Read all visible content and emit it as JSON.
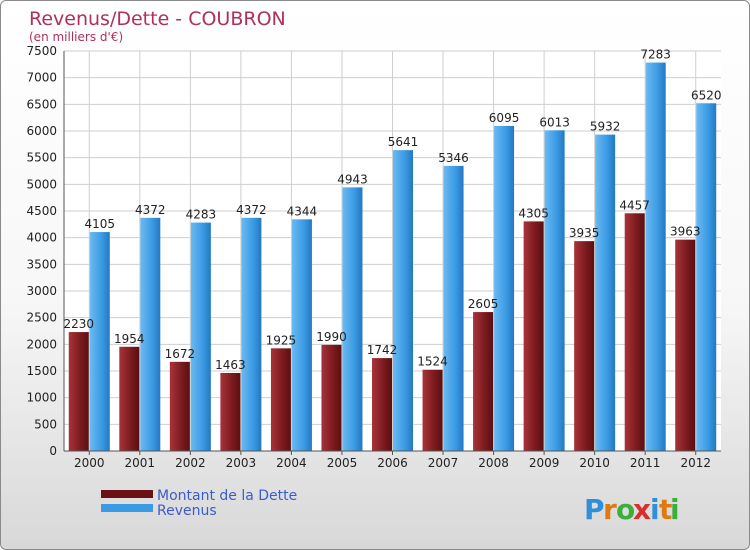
{
  "chart_data": {
    "type": "bar",
    "title": "Revenus/Dette - COUBRON",
    "subtitle": "(en milliers d'€)",
    "categories": [
      "2000",
      "2001",
      "2002",
      "2003",
      "2004",
      "2005",
      "2006",
      "2007",
      "2008",
      "2009",
      "2010",
      "2011",
      "2012"
    ],
    "series": [
      {
        "name": "Montant de la Dette",
        "values": [
          2230,
          1954,
          1672,
          1463,
          1925,
          1990,
          1742,
          1524,
          2605,
          4305,
          3935,
          4457,
          3963
        ],
        "color": "#7a1a1e"
      },
      {
        "name": "Revenus",
        "values": [
          4105,
          4372,
          4283,
          4372,
          4344,
          4943,
          5641,
          5346,
          6095,
          6013,
          5932,
          7283,
          6520
        ],
        "color": "#3a9ae4"
      }
    ],
    "ylim": [
      0,
      7500
    ],
    "yticks": [
      0,
      500,
      1000,
      1500,
      2000,
      2500,
      3000,
      3500,
      4000,
      4500,
      5000,
      5500,
      6000,
      6500,
      7000,
      7500
    ],
    "grid": true,
    "legend_position": "bottom-left"
  },
  "logo": {
    "text": "Proxiti",
    "letters": [
      "P",
      "r",
      "o",
      "x",
      "i",
      "t",
      "i"
    ],
    "colors": [
      "#2f8fd8",
      "#e07a10",
      "#3cae3c",
      "#d8302c",
      "#2f8fd8",
      "#e07a10",
      "#3cae3c"
    ]
  }
}
